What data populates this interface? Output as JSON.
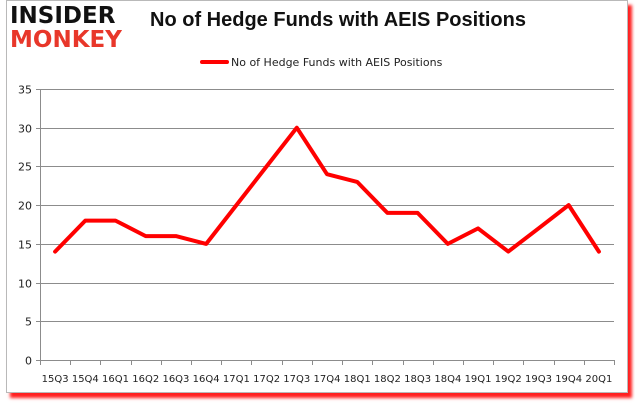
{
  "logo": {
    "line1": "INSIDER",
    "line2": "MONKEY"
  },
  "chart_data": {
    "type": "line",
    "title": "No of Hedge Funds with AEIS Positions",
    "xlabel": "",
    "ylabel": "",
    "categories": [
      "15Q3",
      "15Q4",
      "16Q1",
      "16Q2",
      "16Q3",
      "16Q4",
      "17Q1",
      "17Q2",
      "17Q3",
      "17Q4",
      "18Q1",
      "18Q2",
      "18Q3",
      "18Q4",
      "19Q1",
      "19Q2",
      "19Q3",
      "19Q4",
      "20Q1"
    ],
    "series": [
      {
        "name": "No of Hedge Funds with AEIS Positions",
        "color": "#ff0000",
        "values": [
          14,
          18,
          18,
          16,
          16,
          15,
          20,
          25,
          30,
          24,
          23,
          19,
          19,
          15,
          17,
          14,
          17,
          20,
          14
        ]
      }
    ],
    "ylim": [
      0,
      35
    ],
    "yticks": [
      0,
      5,
      10,
      15,
      20,
      25,
      30,
      35
    ],
    "grid": true,
    "legend_position": "top"
  }
}
